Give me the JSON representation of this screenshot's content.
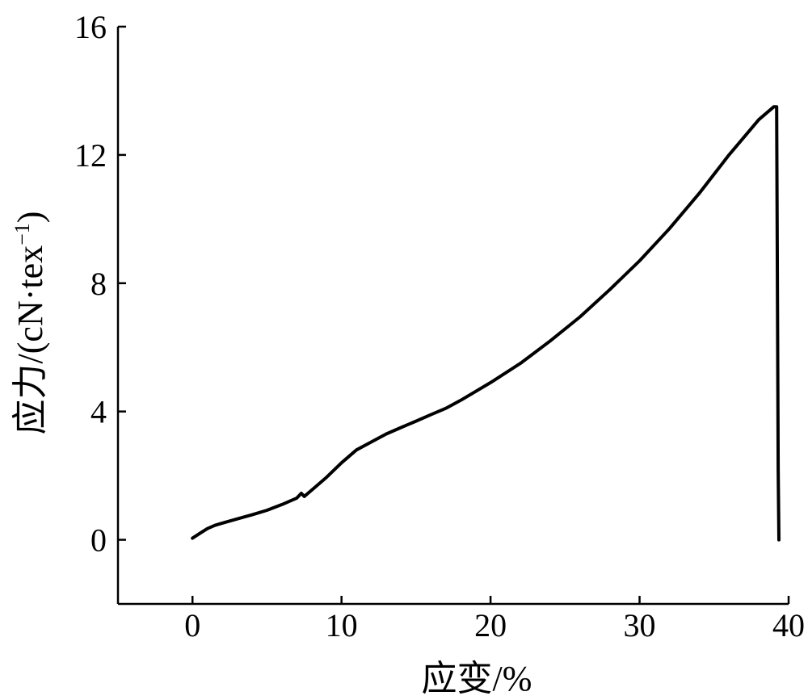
{
  "chart_data": {
    "type": "line",
    "title": "",
    "xlabel": "应变/%",
    "ylabel": "应力/(cN·tex",
    "ylabel_sup": "−1",
    "ylabel_close": ")",
    "xlim": [
      -5,
      40
    ],
    "ylim": [
      -2,
      16
    ],
    "x_ticks": [
      0,
      10,
      20,
      30,
      40
    ],
    "y_ticks": [
      0,
      4,
      8,
      12,
      16
    ],
    "x_tick_labels": [
      "0",
      "10",
      "20",
      "30",
      "40"
    ],
    "y_tick_labels": [
      "0",
      "4",
      "8",
      "12",
      "16"
    ],
    "grid": false,
    "series": [
      {
        "x": [
          0.0,
          0.5,
          1.0,
          1.5,
          2.0,
          3.0,
          4.0,
          5.0,
          6.0,
          7.0,
          7.3,
          7.5,
          8.0,
          9.0,
          10.0,
          11.0,
          12.0,
          13.0,
          14.0,
          15.0,
          16.0,
          17.0,
          18.0,
          20.0,
          22.0,
          24.0,
          26.0,
          28.0,
          30.0,
          32.0,
          34.0,
          36.0,
          38.0,
          39.0,
          39.2,
          39.3,
          39.35
        ],
        "y": [
          0.05,
          0.2,
          0.35,
          0.45,
          0.52,
          0.65,
          0.78,
          0.92,
          1.1,
          1.3,
          1.45,
          1.35,
          1.55,
          1.95,
          2.4,
          2.8,
          3.05,
          3.3,
          3.5,
          3.7,
          3.9,
          4.1,
          4.35,
          4.9,
          5.5,
          6.2,
          6.95,
          7.8,
          8.7,
          9.7,
          10.8,
          12.0,
          13.1,
          13.5,
          13.5,
          2.2,
          0.0
        ]
      }
    ]
  }
}
